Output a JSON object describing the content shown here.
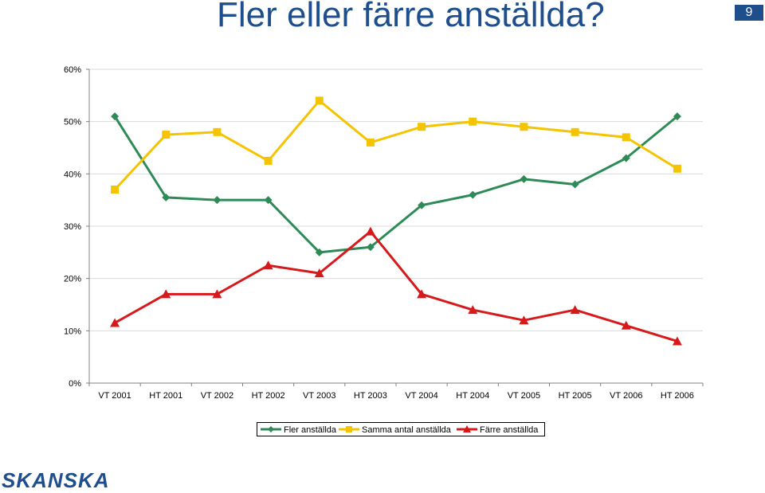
{
  "header": {
    "title": "Fler eller färre anställda?",
    "page_number": "9"
  },
  "footer": {
    "logo_text": "SKANSKA"
  },
  "colors": {
    "title": "#1f4e8c",
    "grid": "#d9d9d9",
    "axis": "#808080"
  },
  "chart_data": {
    "type": "line",
    "title": "",
    "xlabel": "",
    "ylabel": "",
    "categories": [
      "VT 2001",
      "HT 2001",
      "VT 2002",
      "HT 2002",
      "VT 2003",
      "HT 2003",
      "VT 2004",
      "HT 2004",
      "VT 2005",
      "HT 2005",
      "VT 2006",
      "HT 2006"
    ],
    "ylim": [
      0,
      60
    ],
    "yticks": [
      0,
      10,
      20,
      30,
      40,
      50,
      60
    ],
    "ytick_format": "percent",
    "grid": true,
    "legend_position": "bottom",
    "series": [
      {
        "name": "Fler anställda",
        "color": "#2e8b57",
        "marker": "diamond",
        "values": [
          51,
          35.5,
          35,
          35,
          25,
          26,
          34,
          36,
          39,
          38,
          43,
          51
        ]
      },
      {
        "name": "Samma antal anställda",
        "color": "#f5c400",
        "marker": "square",
        "values": [
          37,
          47.5,
          48,
          42.5,
          54,
          46,
          49,
          50,
          49,
          48,
          47,
          41
        ]
      },
      {
        "name": "Färre anställda",
        "color": "#d7191c",
        "marker": "triangle",
        "values": [
          11.5,
          17,
          17,
          22.5,
          21,
          29,
          17,
          14,
          12,
          14,
          11,
          8
        ]
      }
    ]
  }
}
